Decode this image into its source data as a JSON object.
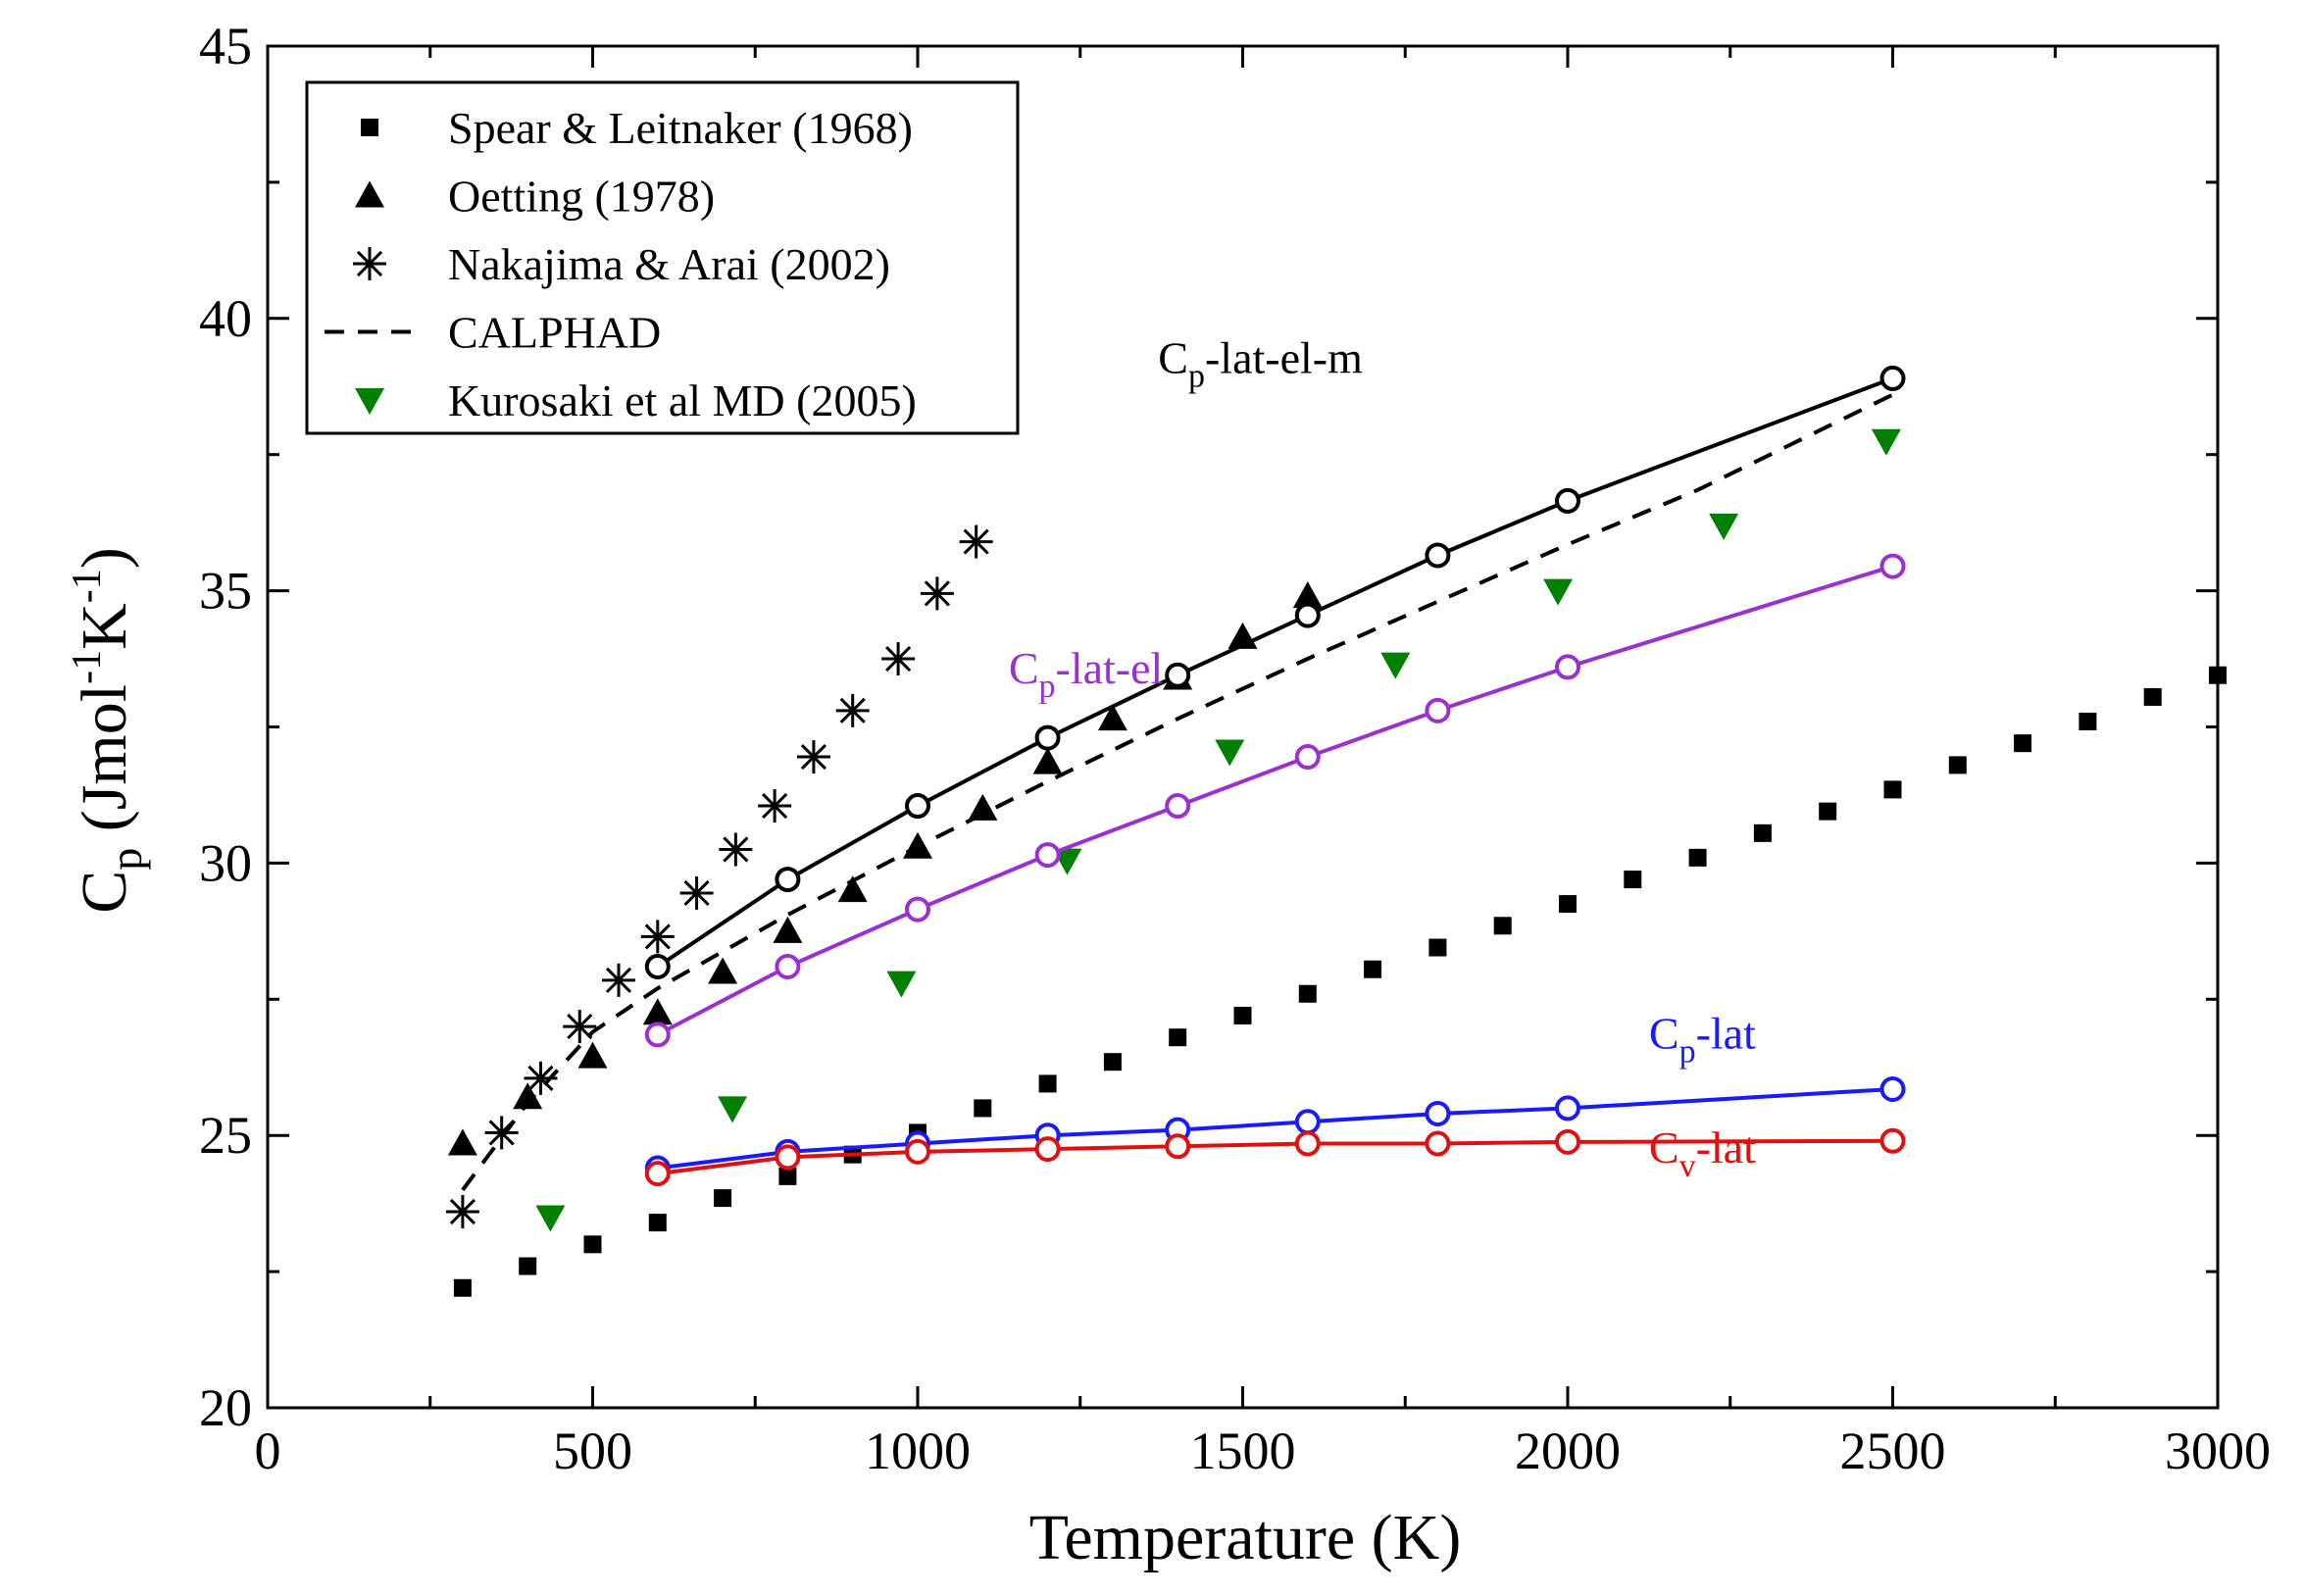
{
  "chart_data": {
    "type": "scatter",
    "title": "",
    "xlabel": "Temperature (K)",
    "ylabel": {
      "main": "C",
      "sub": "p",
      "rest_open": " (Jmol",
      "exp1": "-1",
      "mid": "K",
      "exp2": "-1",
      "rest_close": ")"
    },
    "xlim": [
      0,
      3000
    ],
    "ylim": [
      20,
      45
    ],
    "x_ticks": [
      0,
      500,
      1000,
      1500,
      2000,
      2500,
      3000
    ],
    "y_ticks": [
      20,
      25,
      30,
      35,
      40,
      45
    ],
    "x_tick_labels": [
      "0",
      "500",
      "1000",
      "1500",
      "2000",
      "2500",
      "3000"
    ],
    "y_tick_labels": [
      "20",
      "25",
      "30",
      "35",
      "40",
      "45"
    ],
    "legend_position": "top-left",
    "legend": [
      {
        "label": "Spear & Leitnaker (1968)",
        "marker": "square",
        "color": "#000000"
      },
      {
        "label": "Oetting (1978)",
        "marker": "triangle-up",
        "color": "#000000"
      },
      {
        "label": "Nakajima & Arai (2002)",
        "marker": "asterisk",
        "color": "#000000"
      },
      {
        "label": "CALPHAD",
        "marker": "dashed-line",
        "color": "#000000"
      },
      {
        "label": "Kurosaki et al MD (2005)",
        "marker": "triangle-down",
        "color": "#008000"
      }
    ],
    "series": [
      {
        "name": "Spear & Leitnaker (1968)",
        "marker": "square",
        "color": "#000000",
        "x": [
          300,
          400,
          500,
          600,
          700,
          800,
          900,
          1000,
          1100,
          1200,
          1300,
          1400,
          1500,
          1600,
          1700,
          1800,
          1900,
          2000,
          2100,
          2200,
          2300,
          2400,
          2500,
          2600,
          2700,
          2800,
          2900,
          3000
        ],
        "y": [
          22.2,
          22.6,
          23.0,
          23.4,
          23.85,
          24.25,
          24.65,
          25.05,
          25.5,
          25.95,
          26.35,
          26.8,
          27.2,
          27.6,
          28.05,
          28.45,
          28.85,
          29.25,
          29.7,
          30.1,
          30.55,
          30.95,
          31.35,
          31.8,
          32.2,
          32.6,
          33.05,
          33.45
        ]
      },
      {
        "name": "Oetting (1978)",
        "marker": "triangle-up",
        "color": "#000000",
        "x": [
          300,
          400,
          500,
          600,
          700,
          800,
          900,
          1000,
          1100,
          1200,
          1300,
          1400,
          1500,
          1600
        ],
        "y": [
          24.85,
          25.7,
          26.45,
          27.25,
          28.0,
          28.75,
          29.5,
          30.3,
          31.0,
          31.85,
          32.65,
          33.4,
          34.15,
          34.9
        ]
      },
      {
        "name": "Nakajima & Arai (2002)",
        "marker": "asterisk",
        "color": "#000000",
        "x": [
          300,
          360,
          420,
          480,
          540,
          600,
          660,
          720,
          780,
          840,
          900,
          970,
          1030,
          1090
        ],
        "y": [
          23.6,
          25.05,
          26.05,
          27.0,
          27.85,
          28.65,
          29.45,
          30.25,
          31.05,
          31.95,
          32.8,
          33.75,
          34.95,
          35.9
        ]
      },
      {
        "name": "CALPHAD",
        "marker": "dashed-line",
        "color": "#000000",
        "x": [
          300,
          400,
          500,
          600,
          800,
          1000,
          1200,
          1400,
          1600,
          1800,
          2000,
          2200,
          2500
        ],
        "y": [
          24.0,
          25.6,
          26.9,
          27.7,
          29.05,
          30.3,
          31.5,
          32.65,
          33.75,
          34.8,
          35.85,
          36.85,
          38.6
        ]
      },
      {
        "name": "Kurosaki et al MD (2005)",
        "marker": "triangle-down",
        "color": "#008000",
        "x": [
          435,
          715,
          975,
          1230,
          1480,
          1735,
          1985,
          2240,
          2490
        ],
        "y": [
          23.5,
          25.5,
          27.8,
          30.05,
          32.05,
          33.65,
          35.0,
          36.2,
          37.75
        ]
      },
      {
        "name": "Cp-lat-el-m",
        "marker": "circle-line",
        "color": "#000000",
        "x": [
          600,
          800,
          1000,
          1200,
          1400,
          1600,
          1800,
          2000,
          2500
        ],
        "y": [
          28.1,
          29.7,
          31.05,
          32.3,
          33.45,
          34.55,
          35.65,
          36.65,
          38.9
        ]
      },
      {
        "name": "Cp-lat-el",
        "marker": "circle-line",
        "color": "#9b30d0",
        "x": [
          600,
          800,
          1000,
          1200,
          1400,
          1600,
          1800,
          2000,
          2500
        ],
        "y": [
          26.85,
          28.1,
          29.15,
          30.15,
          31.05,
          31.95,
          32.8,
          33.6,
          35.45
        ]
      },
      {
        "name": "Cp-lat",
        "marker": "circle-line",
        "color": "#1a1aff",
        "x": [
          600,
          800,
          1000,
          1200,
          1400,
          1600,
          1800,
          2000,
          2500
        ],
        "y": [
          24.4,
          24.7,
          24.85,
          25.0,
          25.1,
          25.25,
          25.4,
          25.5,
          25.85
        ]
      },
      {
        "name": "Cv-lat",
        "marker": "circle-line",
        "color": "#e01010",
        "x": [
          600,
          800,
          1000,
          1200,
          1400,
          1600,
          1800,
          2000,
          2500
        ],
        "y": [
          24.3,
          24.6,
          24.7,
          24.75,
          24.8,
          24.85,
          24.85,
          24.88,
          24.9
        ]
      }
    ],
    "annotations": [
      {
        "id": "lat-el-m",
        "main": "C",
        "sub": "p",
        "rest": "-lat-el-m",
        "color": "#000000",
        "x": 1370,
        "y": 39.0
      },
      {
        "id": "lat-el",
        "main": "C",
        "sub": "p",
        "rest": "-lat-el",
        "color": "#9b30d0",
        "x": 1140,
        "y": 33.3
      },
      {
        "id": "lat-p",
        "main": "C",
        "sub": "p",
        "rest": "-lat",
        "color": "#1a1aff",
        "x": 2125,
        "y": 26.6
      },
      {
        "id": "lat-v",
        "main": "C",
        "sub": "v",
        "rest": "-lat",
        "color": "#e01010",
        "x": 2125,
        "y": 24.5
      }
    ]
  }
}
